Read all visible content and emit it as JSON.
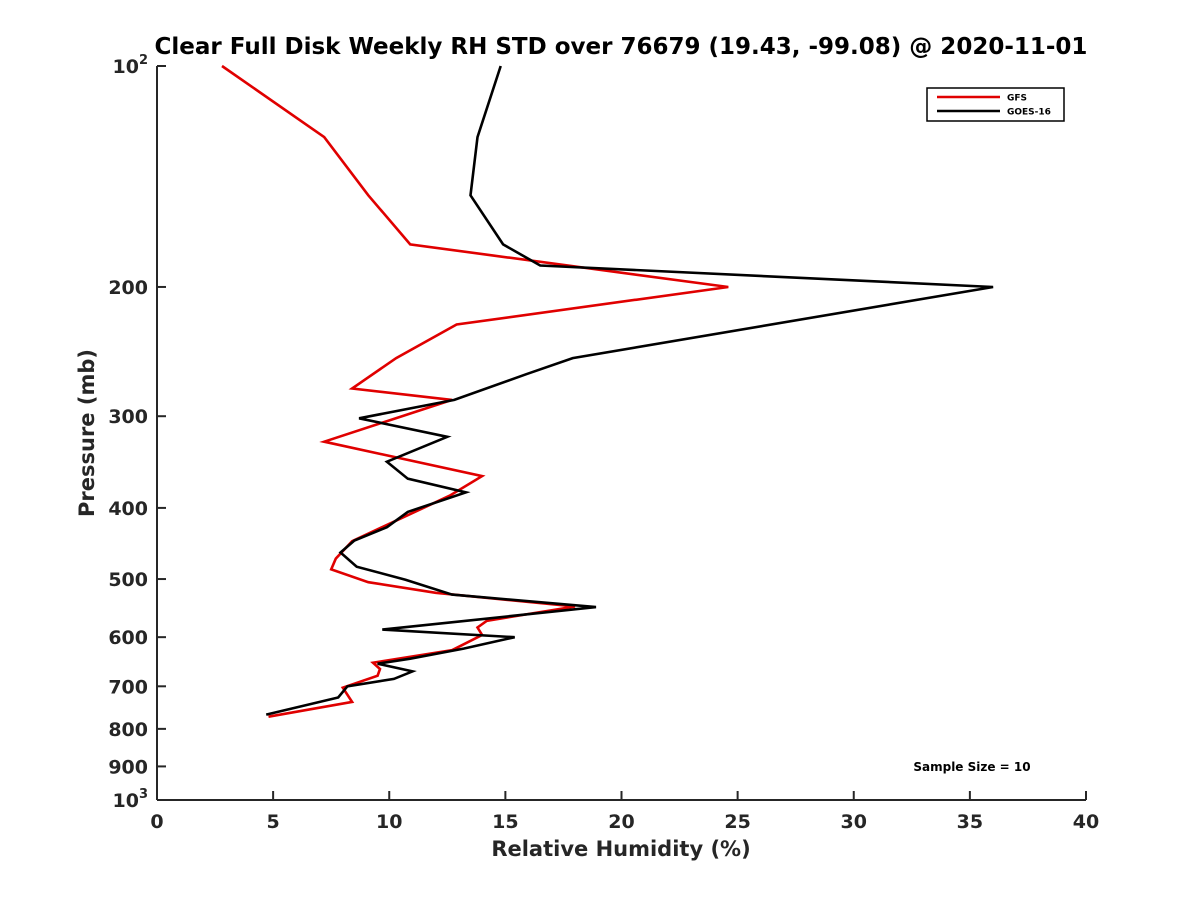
{
  "chart_data": {
    "type": "line",
    "title": "Clear Full Disk Weekly RH STD over 76679 (19.43, -99.08) @ 2020-11-01",
    "xlabel": "Relative Humidity (%)",
    "ylabel": "Pressure (mb)",
    "xlim": [
      0,
      40
    ],
    "ylim": [
      100,
      1000
    ],
    "y_scale": "log",
    "y_reversed": true,
    "x_ticks": [
      "0",
      "5",
      "10",
      "15",
      "20",
      "25",
      "30",
      "35",
      "40"
    ],
    "y_ticks": [
      {
        "value": 100,
        "base": "10",
        "exp": "2"
      },
      {
        "value": 200,
        "label": "200"
      },
      {
        "value": 300,
        "label": "300"
      },
      {
        "value": 400,
        "label": "400"
      },
      {
        "value": 500,
        "label": "500"
      },
      {
        "value": 600,
        "label": "600"
      },
      {
        "value": 700,
        "label": "700"
      },
      {
        "value": 800,
        "label": "800"
      },
      {
        "value": 900,
        "label": "900"
      },
      {
        "value": 1000,
        "base": "10",
        "exp": "3"
      }
    ],
    "legend_position": "top-right",
    "annotation": "Sample Size = 10",
    "series": [
      {
        "name": "GFS",
        "color": "#e00000",
        "points": [
          [
            2.8,
            100
          ],
          [
            7.2,
            125
          ],
          [
            9.1,
            150
          ],
          [
            10.9,
            175
          ],
          [
            24.6,
            200
          ],
          [
            12.9,
            225
          ],
          [
            10.3,
            250
          ],
          [
            8.4,
            275
          ],
          [
            12.7,
            285
          ],
          [
            7.2,
            325
          ],
          [
            14.0,
            362
          ],
          [
            12.6,
            385
          ],
          [
            8.4,
            444
          ],
          [
            7.7,
            469
          ],
          [
            7.5,
            485
          ],
          [
            9.1,
            505
          ],
          [
            12.0,
            522
          ],
          [
            18.0,
            545
          ],
          [
            14.2,
            570
          ],
          [
            13.8,
            582
          ],
          [
            14.0,
            596
          ],
          [
            12.7,
            625
          ],
          [
            9.3,
            650
          ],
          [
            9.6,
            663
          ],
          [
            9.5,
            677
          ],
          [
            8.0,
            703
          ],
          [
            8.4,
            735
          ],
          [
            4.8,
            770
          ]
        ]
      },
      {
        "name": "GOES-16",
        "color": "#000000",
        "points": [
          [
            14.8,
            100
          ],
          [
            13.8,
            125
          ],
          [
            13.5,
            150
          ],
          [
            14.9,
            175
          ],
          [
            16.5,
            187
          ],
          [
            36.0,
            200
          ],
          [
            17.9,
            250
          ],
          [
            15.9,
            263
          ],
          [
            12.8,
            285
          ],
          [
            8.7,
            302
          ],
          [
            12.5,
            320
          ],
          [
            9.9,
            346
          ],
          [
            10.8,
            365
          ],
          [
            13.3,
            381
          ],
          [
            10.8,
            405
          ],
          [
            9.9,
            425
          ],
          [
            8.5,
            443
          ],
          [
            7.9,
            460
          ],
          [
            8.6,
            481
          ],
          [
            10.7,
            501
          ],
          [
            12.7,
            525
          ],
          [
            18.9,
            546
          ],
          [
            9.7,
            586
          ],
          [
            15.4,
            600
          ],
          [
            13.2,
            622
          ],
          [
            10.9,
            642
          ],
          [
            9.5,
            652
          ],
          [
            11.0,
            668
          ],
          [
            10.2,
            684
          ],
          [
            8.2,
            700
          ],
          [
            7.8,
            725
          ],
          [
            4.7,
            765
          ]
        ]
      }
    ]
  }
}
